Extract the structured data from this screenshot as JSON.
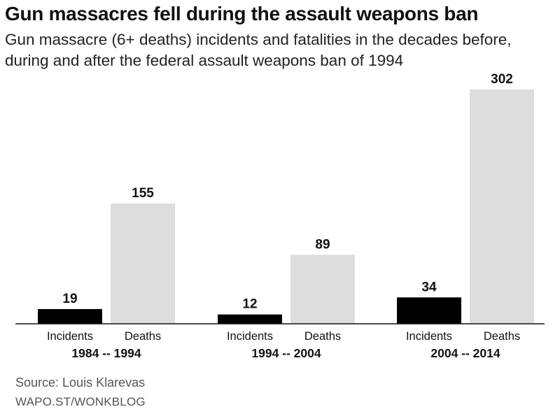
{
  "title": "Gun massacres fell during the assault weapons ban",
  "subtitle": "Gun massacre (6+ deaths) incidents and fatalities in the decades before, during and after the federal assault weapons ban of 1994",
  "source": "Source: Louis Klarevas",
  "credit": "WAPO.ST/WONKBLOG",
  "chart_data": {
    "type": "bar",
    "categories": [
      "1984 -- 1994",
      "1994 -- 2004",
      "2004 -- 2014"
    ],
    "sub_labels": [
      "Incidents",
      "Deaths"
    ],
    "series": [
      {
        "values": [
          19,
          12,
          34
        ],
        "color": "#000000"
      },
      {
        "values": [
          155,
          89,
          302
        ],
        "color": "#dddddd"
      }
    ],
    "ylim": [
      0,
      302
    ],
    "grid": false,
    "legend": "none"
  }
}
